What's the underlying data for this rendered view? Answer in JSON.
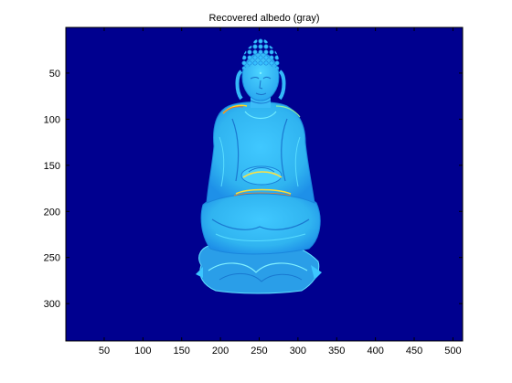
{
  "chart_data": {
    "type": "heatmap",
    "title": "Recovered albedo (gray)",
    "xlabel": "",
    "ylabel": "",
    "xlim": [
      0.5,
      512.5
    ],
    "ylim": [
      0.5,
      340.5
    ],
    "y_reversed": true,
    "x_ticks": [
      50,
      100,
      150,
      200,
      250,
      300,
      350,
      400,
      450,
      500
    ],
    "y_ticks": [
      50,
      100,
      150,
      200,
      250,
      300
    ],
    "colormap": "jet",
    "background_color": "#00008f",
    "subject": "seated Buddha statue albedo map",
    "grid": false
  }
}
